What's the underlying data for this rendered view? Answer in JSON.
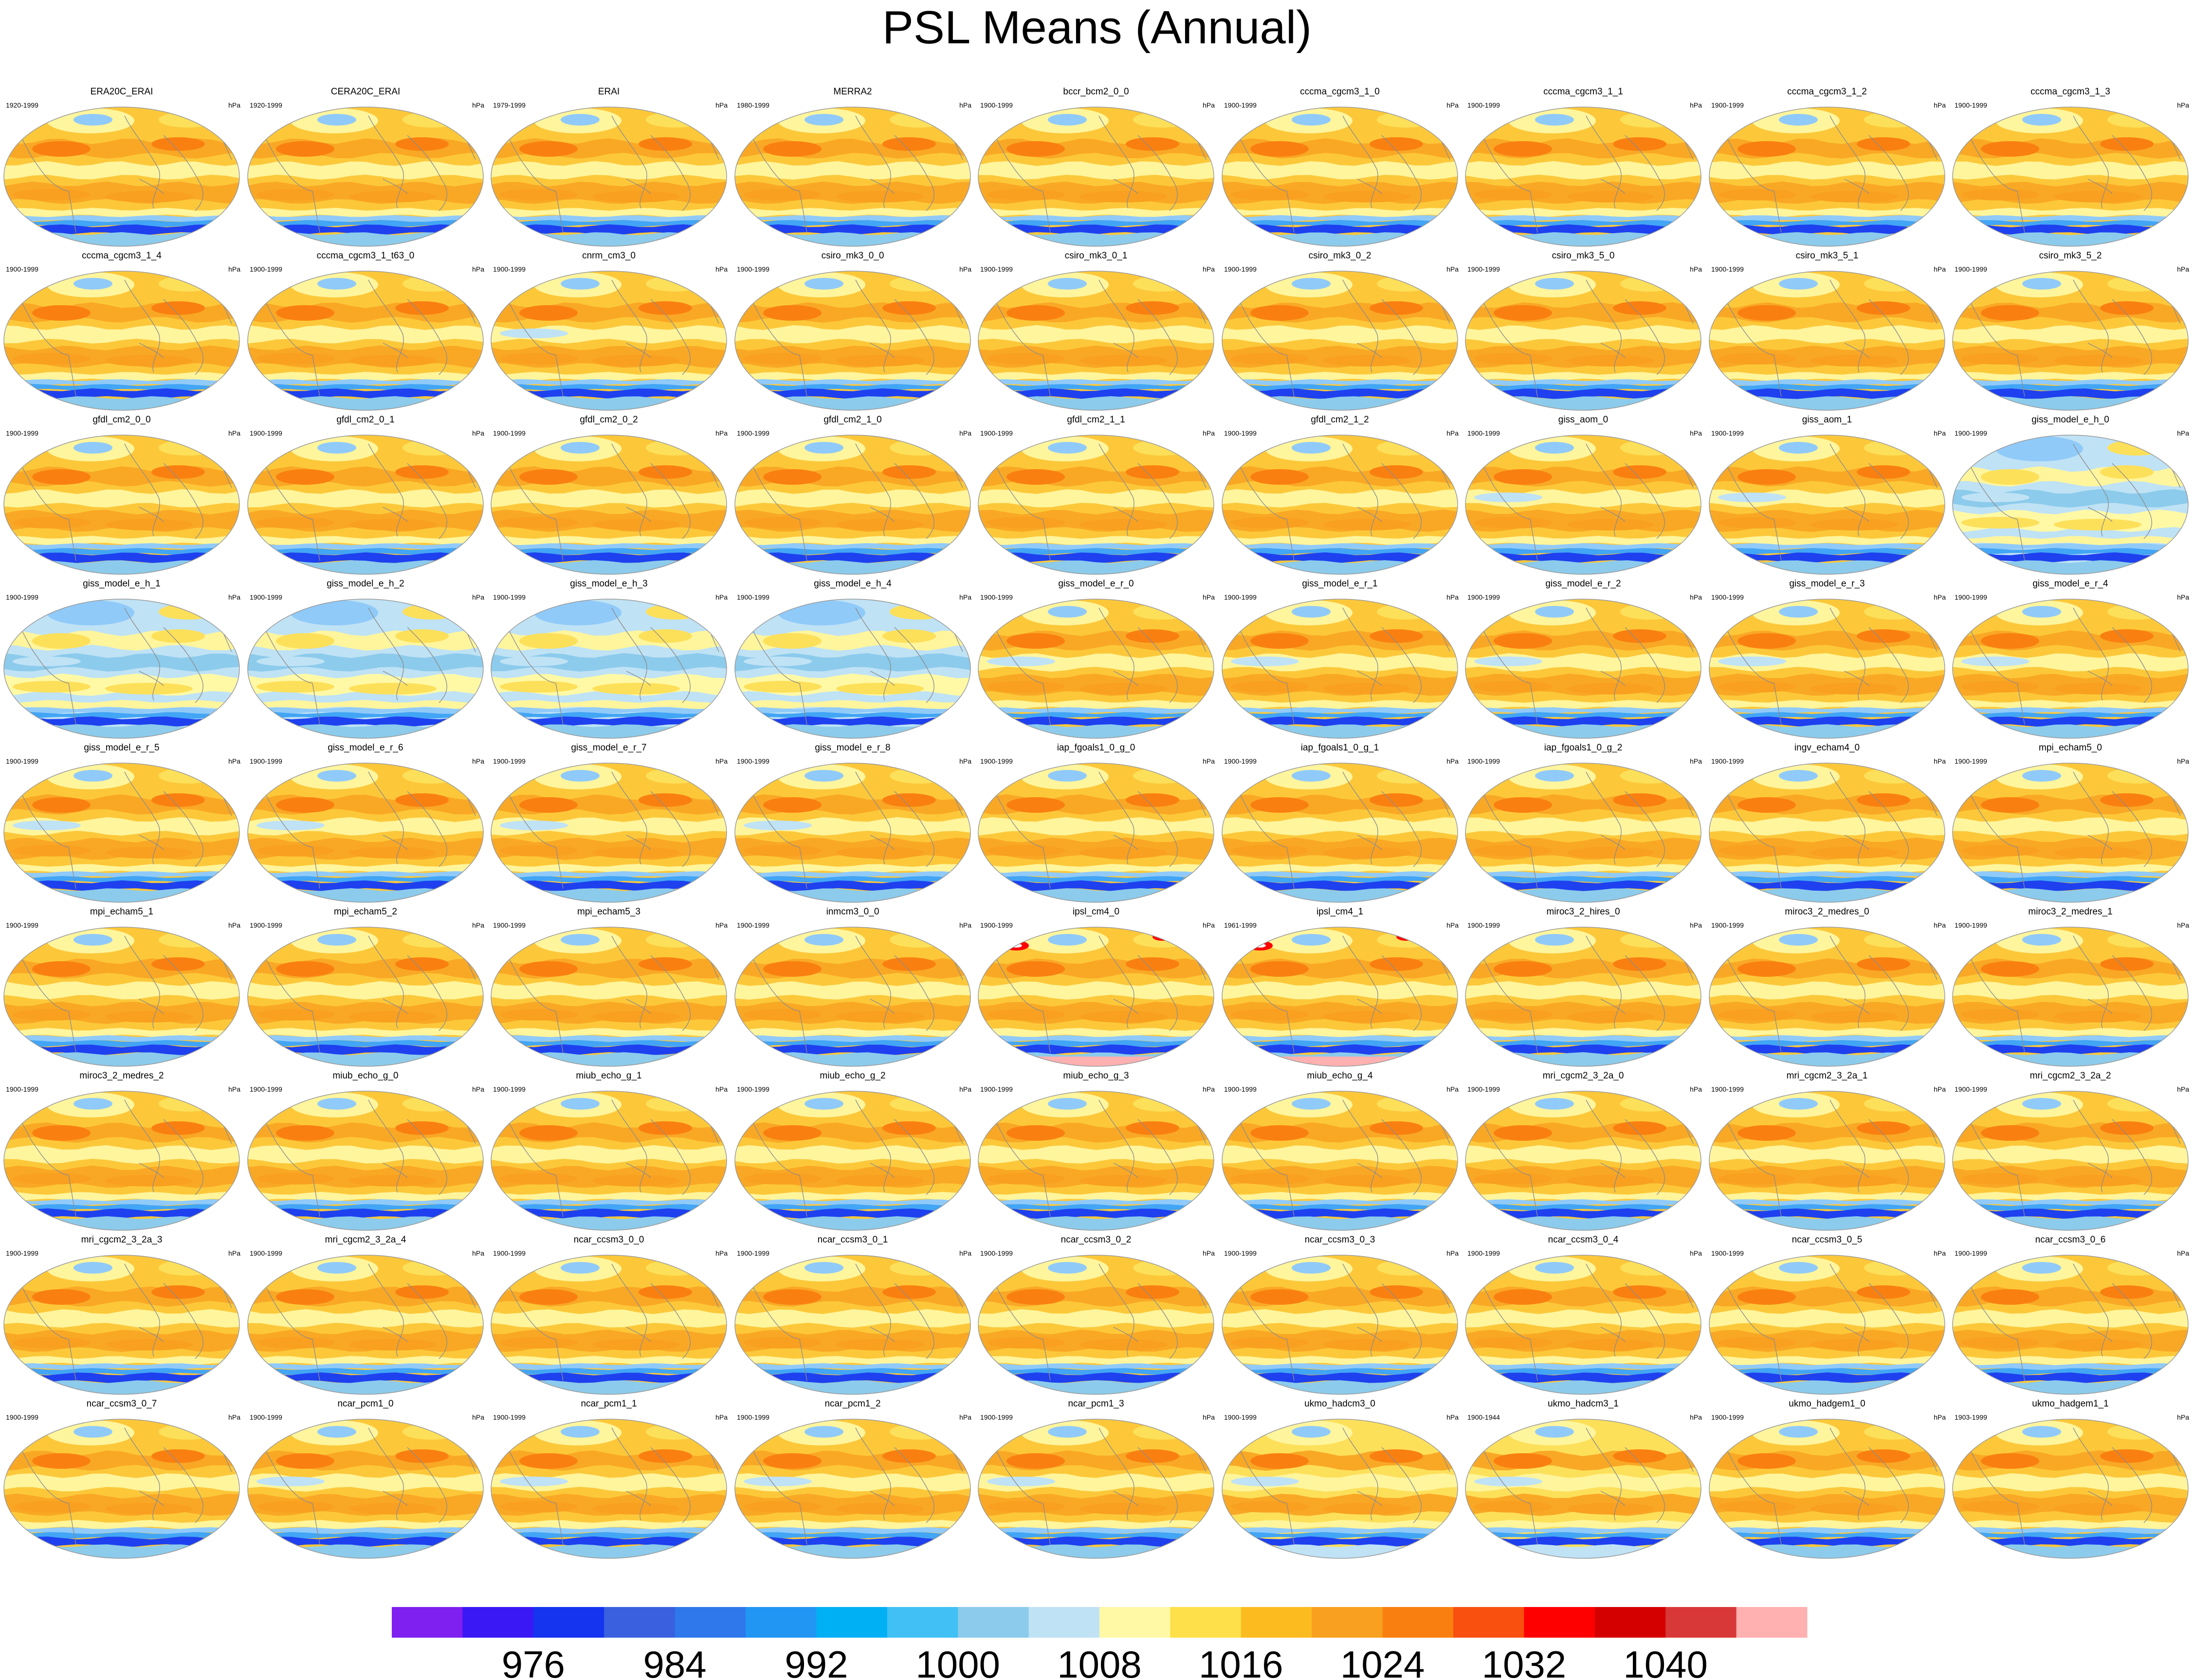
{
  "title": "PSL Means (Annual)",
  "units": "hPa",
  "colors": {
    "ocean_warm": "#fcc83a",
    "ocean_mid": "#fde05a",
    "high_band": "#f9a825",
    "pale_band": "#fff59d",
    "low_band_light": "#90caf9",
    "low_band_mid": "#42a5f5",
    "low_band_dark": "#1e40ef",
    "coast": "#8d8d8d"
  },
  "chart_data": {
    "type": "heatmap",
    "panels": [
      {
        "name": "ERA20C_ERAI",
        "years": "1920-1999",
        "style": "normal"
      },
      {
        "name": "CERA20C_ERAI",
        "years": "1920-1999",
        "style": "normal"
      },
      {
        "name": "ERAI",
        "years": "1979-1999",
        "style": "normal"
      },
      {
        "name": "MERRA2",
        "years": "1980-1999",
        "style": "normal"
      },
      {
        "name": "bccr_bcm2_0_0",
        "years": "1900-1999",
        "style": "normal"
      },
      {
        "name": "cccma_cgcm3_1_0",
        "years": "1900-1999",
        "style": "normal"
      },
      {
        "name": "cccma_cgcm3_1_1",
        "years": "1900-1999",
        "style": "normal"
      },
      {
        "name": "cccma_cgcm3_1_2",
        "years": "1900-1999",
        "style": "normal"
      },
      {
        "name": "cccma_cgcm3_1_3",
        "years": "1900-1999",
        "style": "normal"
      },
      {
        "name": "cccma_cgcm3_1_4",
        "years": "1900-1999",
        "style": "normal"
      },
      {
        "name": "cccma_cgcm3_1_t63_0",
        "years": "1900-1999",
        "style": "normal"
      },
      {
        "name": "cnrm_cm3_0",
        "years": "1900-1999",
        "style": "hot-south"
      },
      {
        "name": "csiro_mk3_0_0",
        "years": "1900-1999",
        "style": "normal"
      },
      {
        "name": "csiro_mk3_0_1",
        "years": "1900-1999",
        "style": "normal"
      },
      {
        "name": "csiro_mk3_0_2",
        "years": "1900-1999",
        "style": "normal"
      },
      {
        "name": "csiro_mk3_5_0",
        "years": "1900-1999",
        "style": "normal"
      },
      {
        "name": "csiro_mk3_5_1",
        "years": "1900-1999",
        "style": "normal"
      },
      {
        "name": "csiro_mk3_5_2",
        "years": "1900-1999",
        "style": "normal"
      },
      {
        "name": "gfdl_cm2_0_0",
        "years": "1900-1999",
        "style": "normal"
      },
      {
        "name": "gfdl_cm2_0_1",
        "years": "1900-1999",
        "style": "normal"
      },
      {
        "name": "gfdl_cm2_0_2",
        "years": "1900-1999",
        "style": "normal"
      },
      {
        "name": "gfdl_cm2_1_0",
        "years": "1900-1999",
        "style": "normal"
      },
      {
        "name": "gfdl_cm2_1_1",
        "years": "1900-1999",
        "style": "normal"
      },
      {
        "name": "gfdl_cm2_1_2",
        "years": "1900-1999",
        "style": "normal"
      },
      {
        "name": "giss_aom_0",
        "years": "1900-1999",
        "style": "hot-south"
      },
      {
        "name": "giss_aom_1",
        "years": "1900-1999",
        "style": "hot-south"
      },
      {
        "name": "giss_model_e_h_0",
        "years": "1900-1999",
        "style": "blue-hot"
      },
      {
        "name": "giss_model_e_h_1",
        "years": "1900-1999",
        "style": "blue-hot"
      },
      {
        "name": "giss_model_e_h_2",
        "years": "1900-1999",
        "style": "blue-hot"
      },
      {
        "name": "giss_model_e_h_3",
        "years": "1900-1999",
        "style": "blue-hot"
      },
      {
        "name": "giss_model_e_h_4",
        "years": "1900-1999",
        "style": "blue-hot"
      },
      {
        "name": "giss_model_e_r_0",
        "years": "1900-1999",
        "style": "hot-south"
      },
      {
        "name": "giss_model_e_r_1",
        "years": "1900-1999",
        "style": "hot-south"
      },
      {
        "name": "giss_model_e_r_2",
        "years": "1900-1999",
        "style": "hot-south"
      },
      {
        "name": "giss_model_e_r_3",
        "years": "1900-1999",
        "style": "hot-south"
      },
      {
        "name": "giss_model_e_r_4",
        "years": "1900-1999",
        "style": "hot-south"
      },
      {
        "name": "giss_model_e_r_5",
        "years": "1900-1999",
        "style": "hot-south"
      },
      {
        "name": "giss_model_e_r_6",
        "years": "1900-1999",
        "style": "hot-south"
      },
      {
        "name": "giss_model_e_r_7",
        "years": "1900-1999",
        "style": "hot-south"
      },
      {
        "name": "giss_model_e_r_8",
        "years": "1900-1999",
        "style": "hot-south"
      },
      {
        "name": "iap_fgoals1_0_g_0",
        "years": "1900-1999",
        "style": "normal"
      },
      {
        "name": "iap_fgoals1_0_g_1",
        "years": "1900-1999",
        "style": "normal"
      },
      {
        "name": "iap_fgoals1_0_g_2",
        "years": "1900-1999",
        "style": "normal"
      },
      {
        "name": "ingv_echam4_0",
        "years": "1900-1999",
        "style": "normal"
      },
      {
        "name": "mpi_echam5_0",
        "years": "1900-1999",
        "style": "normal"
      },
      {
        "name": "mpi_echam5_1",
        "years": "1900-1999",
        "style": "normal"
      },
      {
        "name": "mpi_echam5_2",
        "years": "1900-1999",
        "style": "normal"
      },
      {
        "name": "mpi_echam5_3",
        "years": "1900-1999",
        "style": "normal"
      },
      {
        "name": "inmcm3_0_0",
        "years": "1900-1999",
        "style": "normal"
      },
      {
        "name": "ipsl_cm4_0",
        "years": "1900-1999",
        "style": "pink-south"
      },
      {
        "name": "ipsl_cm4_1",
        "years": "1961-1999",
        "style": "pink-south"
      },
      {
        "name": "miroc3_2_hires_0",
        "years": "1900-1999",
        "style": "normal"
      },
      {
        "name": "miroc3_2_medres_0",
        "years": "1900-1999",
        "style": "normal"
      },
      {
        "name": "miroc3_2_medres_1",
        "years": "1900-1999",
        "style": "normal"
      },
      {
        "name": "miroc3_2_medres_2",
        "years": "1900-1999",
        "style": "normal"
      },
      {
        "name": "miub_echo_g_0",
        "years": "1900-1999",
        "style": "normal"
      },
      {
        "name": "miub_echo_g_1",
        "years": "1900-1999",
        "style": "normal"
      },
      {
        "name": "miub_echo_g_2",
        "years": "1900-1999",
        "style": "normal"
      },
      {
        "name": "miub_echo_g_3",
        "years": "1900-1999",
        "style": "normal"
      },
      {
        "name": "miub_echo_g_4",
        "years": "1900-1999",
        "style": "normal"
      },
      {
        "name": "mri_cgcm2_3_2a_0",
        "years": "1900-1999",
        "style": "normal"
      },
      {
        "name": "mri_cgcm2_3_2a_1",
        "years": "1900-1999",
        "style": "normal"
      },
      {
        "name": "mri_cgcm2_3_2a_2",
        "years": "1900-1999",
        "style": "normal"
      },
      {
        "name": "mri_cgcm2_3_2a_3",
        "years": "1900-1999",
        "style": "normal"
      },
      {
        "name": "mri_cgcm2_3_2a_4",
        "years": "1900-1999",
        "style": "normal"
      },
      {
        "name": "ncar_ccsm3_0_0",
        "years": "1900-1999",
        "style": "normal"
      },
      {
        "name": "ncar_ccsm3_0_1",
        "years": "1900-1999",
        "style": "normal"
      },
      {
        "name": "ncar_ccsm3_0_2",
        "years": "1900-1999",
        "style": "normal"
      },
      {
        "name": "ncar_ccsm3_0_3",
        "years": "1900-1999",
        "style": "normal"
      },
      {
        "name": "ncar_ccsm3_0_4",
        "years": "1900-1999",
        "style": "normal"
      },
      {
        "name": "ncar_ccsm3_0_5",
        "years": "1900-1999",
        "style": "normal"
      },
      {
        "name": "ncar_ccsm3_0_6",
        "years": "1900-1999",
        "style": "normal"
      },
      {
        "name": "ncar_ccsm3_0_7",
        "years": "1900-1999",
        "style": "normal"
      },
      {
        "name": "ncar_pcm1_0",
        "years": "1900-1999",
        "style": "hot-south"
      },
      {
        "name": "ncar_pcm1_1",
        "years": "1900-1999",
        "style": "hot-south"
      },
      {
        "name": "ncar_pcm1_2",
        "years": "1900-1999",
        "style": "hot-south"
      },
      {
        "name": "ncar_pcm1_3",
        "years": "1900-1999",
        "style": "hot-south"
      },
      {
        "name": "ukmo_hadcm3_0",
        "years": "1900-1999",
        "style": "pale-blue"
      },
      {
        "name": "ukmo_hadcm3_1",
        "years": "1900-1944",
        "style": "pale-blue"
      },
      {
        "name": "ukmo_hadgem1_0",
        "years": "1900-1999",
        "style": "normal"
      },
      {
        "name": "ukmo_hadgem1_1",
        "years": "1903-1999",
        "style": "normal"
      }
    ],
    "colorbar": {
      "colors": [
        "#7f1ff0",
        "#3a18f5",
        "#1434f0",
        "#3a60e0",
        "#2e78ec",
        "#2196f3",
        "#00b0f5",
        "#40c0f5",
        "#8ccbeb",
        "#bfe2f5",
        "#fff9a6",
        "#fde04a",
        "#fcbc20",
        "#f9a020",
        "#f98010",
        "#f95010",
        "#ff0000",
        "#d40000",
        "#d83838",
        "#ffb0b0"
      ],
      "tick_labels": [
        "976",
        "984",
        "992",
        "1000",
        "1008",
        "1016",
        "1024",
        "1032",
        "1040"
      ]
    }
  }
}
